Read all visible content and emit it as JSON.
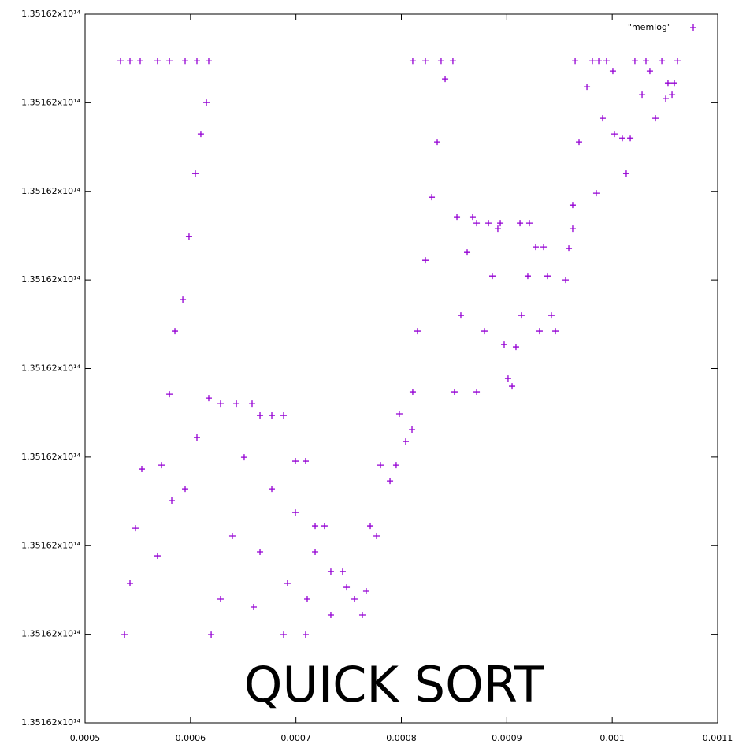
{
  "chart_data": {
    "type": "scatter",
    "annotation": "QUICK SORT",
    "xlim": [
      0.0005,
      0.0011
    ],
    "xticks": [
      0.0005,
      0.0006,
      0.0007,
      0.0008,
      0.0009,
      0.001,
      0.0011
    ],
    "ylim": [
      135162000000000,
      135162000800000
    ],
    "yticks": [
      {
        "value": 135162000000000,
        "label": "1.35162x10¹⁴"
      },
      {
        "value": 135162000100000,
        "label": "1.35162x10¹⁴"
      },
      {
        "value": 135162000200000,
        "label": "1.35162x10¹⁴"
      },
      {
        "value": 135162000300000,
        "label": "1.35162x10¹⁴"
      },
      {
        "value": 135162000400000,
        "label": "1.35162x10¹⁴"
      },
      {
        "value": 135162000500000,
        "label": "1.35162x10¹⁴"
      },
      {
        "value": 135162000600000,
        "label": "1.35162x10¹⁴"
      },
      {
        "value": 135162000700000,
        "label": "1.35162x10¹⁴"
      },
      {
        "value": 135162000800000,
        "label": "1.35162x10¹⁴"
      }
    ],
    "grid": false,
    "legend": "top-right",
    "series": [
      {
        "name": "\"memlog\"",
        "color": "#9400d3",
        "x": [
          0.0005336,
          0.0005426,
          0.0005523,
          0.0005687,
          0.00058,
          0.0005949,
          0.0006061,
          0.0006173,
          0.0006151,
          0.0006098,
          0.0006046,
          0.0005986,
          0.0005927,
          0.0005852,
          0.00058,
          0.0005725,
          0.0005374,
          0.0005426,
          0.0005478,
          0.0005538,
          0.0005687,
          0.0005822,
          0.0005949,
          0.0006061,
          0.0006173,
          0.0006285,
          0.0006435,
          0.0006584,
          0.0006509,
          0.0006397,
          0.0006285,
          0.0006196,
          0.0006659,
          0.0006771,
          0.0006883,
          0.0006771,
          0.0006659,
          0.0006599,
          0.0006995,
          0.0007092,
          0.0006995,
          0.000692,
          0.0006883,
          0.0007182,
          0.0007271,
          0.0007182,
          0.0007107,
          0.0007092,
          0.0007331,
          0.0007443,
          0.0007331,
          0.0007481,
          0.0007555,
          0.000763,
          0.0007667,
          0.0007705,
          0.0007765,
          0.0007802,
          0.0007892,
          0.0007951,
          0.0007981,
          0.0008041,
          0.0008101,
          0.0008108,
          0.0008153,
          0.0008228,
          0.0008288,
          0.000834,
          0.0008415,
          0.0008489,
          0.0008108,
          0.0008228,
          0.0008377,
          0.0008504,
          0.0008564,
          0.0008624,
          0.0008676,
          0.0008527,
          0.0008714,
          0.0008826,
          0.0008938,
          0.0008714,
          0.0008788,
          0.0008863,
          0.0008915,
          0.0008975,
          0.0009012,
          0.000905,
          0.0009087,
          0.0009125,
          0.0009214,
          0.0009139,
          0.0009199,
          0.0009274,
          0.0009349,
          0.0009311,
          0.0009386,
          0.0009423,
          0.0009461,
          0.0009558,
          0.0009588,
          0.0009625,
          0.0009625,
          0.0009685,
          0.000976,
          0.0009812,
          0.0009648,
          0.0009872,
          0.0009946,
          0.0010006,
          0.0009909,
          0.0009849,
          0.0010021,
          0.0010096,
          0.0010171,
          0.0010133,
          0.0010215,
          0.0010283,
          0.001032,
          0.0010357,
          0.001041,
          0.001047,
          0.0010529,
          0.0010589,
          0.0010619,
          0.0010507,
          0.0010567
        ],
        "values": [
          135162000747300,
          135162000747300,
          135162000747300,
          135162000747300,
          135162000747300,
          135162000747300,
          135162000747300,
          135162000747300,
          135162000700200,
          135162000664600,
          135162000620100,
          135162000548900,
          135162000477800,
          135162000442200,
          135162000371000,
          135162000290900,
          135162000099600,
          135162000157500,
          135162000219700,
          135162000286500,
          135162000188600,
          135162000250900,
          135162000264200,
          135162000322100,
          135162000366500,
          135162000360300,
          135162000360300,
          135162000360300,
          135162000299800,
          135162000210900,
          135162000139700,
          135162000099600,
          135162000347000,
          135162000347000,
          135162000347000,
          135162000264200,
          135162000193100,
          135162000130800,
          135162000295400,
          135162000295400,
          135162000237500,
          135162000157500,
          135162000099600,
          135162000222400,
          135162000222400,
          135162000193100,
          135162000139700,
          135162000099600,
          135162000170800,
          135162000170800,
          135162000121900,
          135162000153000,
          135162000139700,
          135162000121900,
          135162000148600,
          135162000222400,
          135162000210900,
          135162000290900,
          135162000273100,
          135162000290900,
          135162000348800,
          135162000317600,
          135162000331000,
          135162000373700,
          135162000442200,
          135162000522200,
          135162000593400,
          135162000655700,
          135162000726900,
          135162000747300,
          135162000747300,
          135162000747300,
          135162000747300,
          135162000373700,
          135162000460000,
          135162000531100,
          135162000571200,
          135162000571200,
          135162000564100,
          135162000564100,
          135162000564100,
          135162000373700,
          135162000442200,
          135162000504400,
          135162000557800,
          135162000427000,
          135162000388800,
          135162000379900,
          135162000424400,
          135162000564100,
          135162000564100,
          135162000460000,
          135162000504400,
          135162000537400,
          135162000537400,
          135162000442200,
          135162000504400,
          135162000460000,
          135162000442200,
          135162000500000,
          135162000535600,
          135162000557800,
          135162000584500,
          135162000655700,
          135162000718000,
          135162000747300,
          135162000747300,
          135162000747300,
          135162000747300,
          135162000735800,
          135162000682400,
          135162000597900,
          135162000664600,
          135162000660100,
          135162000660100,
          135162000620100,
          135162000747300,
          135162000709100,
          135162000747300,
          135162000735800,
          135162000682400,
          135162000747300,
          135162000722400,
          135162000722400,
          135162000747300,
          135162000704600,
          135162000709100
        ]
      }
    ]
  }
}
